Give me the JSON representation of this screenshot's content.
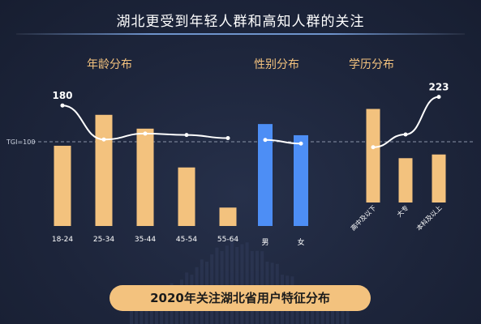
{
  "title": "湖北更受到年轻人群和高知人群的关注",
  "footer": "2020年关注湖北省用户特征分布",
  "colors": {
    "bar_age_edu": "#f3c27e",
    "bar_gender": "#4d8ef5",
    "line": "#ffffff",
    "ref_line": "#8a93a8"
  },
  "chart_data": [
    {
      "type": "bar",
      "title": "年龄分布",
      "categories": [
        "18-24",
        "25-34",
        "35-44",
        "45-54",
        "55-64"
      ],
      "values": [
        122,
        169,
        148,
        89,
        28
      ],
      "line_values": [
        180,
        105,
        118,
        115,
        108
      ],
      "annotations": [
        {
          "category": "18-24",
          "label": "180"
        }
      ],
      "reference": {
        "label": "TGI=100",
        "value": 100
      }
    },
    {
      "type": "bar",
      "title": "性别分布",
      "categories": [
        "男",
        "女"
      ],
      "values": [
        155,
        138
      ],
      "line_values": [
        104,
        96
      ]
    },
    {
      "type": "bar",
      "title": "学历分布",
      "categories": [
        "高中及以下",
        "大专",
        "本科及以上"
      ],
      "values": [
        152,
        72,
        78
      ],
      "line_values": [
        85,
        120,
        223
      ],
      "annotations": [
        {
          "category": "本科及以上",
          "label": "223"
        }
      ]
    }
  ]
}
